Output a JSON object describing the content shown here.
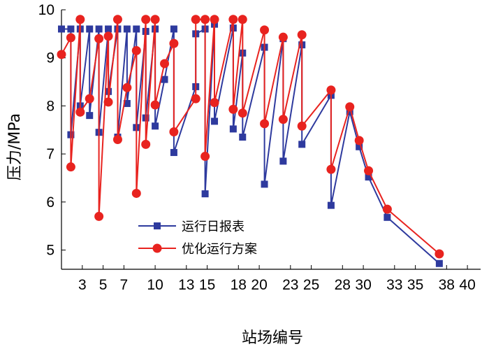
{
  "chart_data": {
    "type": "line",
    "title": "",
    "xlabel": "站场编号",
    "ylabel": "压力/MPa",
    "ylim": [
      4.6,
      10
    ],
    "yticks": [
      5,
      6,
      7,
      8,
      9,
      10
    ],
    "xticks": [
      3,
      5,
      7,
      10,
      13,
      15,
      18,
      20,
      23,
      25,
      28,
      30,
      33,
      35,
      38,
      40
    ],
    "xtick_labels": [
      "3",
      "5",
      "7",
      "10",
      "13",
      "15",
      "18",
      "20",
      "23",
      "25",
      "28",
      "30",
      "33",
      "35",
      "38",
      "40"
    ],
    "xlim": [
      1,
      41
    ],
    "grid": false,
    "legend_position": "lower-left",
    "series": [
      {
        "name": "运行日报表",
        "color": "#2e3a9e",
        "marker": "square",
        "points": [
          [
            1.0,
            9.6
          ],
          [
            1.9,
            9.6
          ],
          [
            1.9,
            7.4
          ],
          [
            2.8,
            9.6
          ],
          [
            2.8,
            8.0
          ],
          [
            3.7,
            9.6
          ],
          [
            3.7,
            7.8
          ],
          [
            4.6,
            9.6
          ],
          [
            4.6,
            7.45
          ],
          [
            5.5,
            9.6
          ],
          [
            5.5,
            8.3
          ],
          [
            6.4,
            9.6
          ],
          [
            6.4,
            7.35
          ],
          [
            7.3,
            9.6
          ],
          [
            7.3,
            8.05
          ],
          [
            8.2,
            9.6
          ],
          [
            8.2,
            7.55
          ],
          [
            9.1,
            9.55
          ],
          [
            9.1,
            7.75
          ],
          [
            10.0,
            9.6
          ],
          [
            10.0,
            7.58
          ],
          [
            10.9,
            8.55
          ],
          [
            11.8,
            9.6
          ],
          [
            11.8,
            7.03
          ],
          [
            13.9,
            8.4
          ],
          [
            13.9,
            9.5
          ],
          [
            14.8,
            9.6
          ],
          [
            14.8,
            6.17
          ],
          [
            15.7,
            9.7
          ],
          [
            15.7,
            7.68
          ],
          [
            17.5,
            9.62
          ],
          [
            17.5,
            7.52
          ],
          [
            18.4,
            9.1
          ],
          [
            18.4,
            7.35
          ],
          [
            20.5,
            9.22
          ],
          [
            20.5,
            6.37
          ],
          [
            22.3,
            9.4
          ],
          [
            22.3,
            6.85
          ],
          [
            24.1,
            9.27
          ],
          [
            24.1,
            7.2
          ],
          [
            26.9,
            8.22
          ],
          [
            26.9,
            5.93
          ],
          [
            28.7,
            7.88
          ],
          [
            29.6,
            7.15
          ],
          [
            30.5,
            6.52
          ],
          [
            32.3,
            5.68
          ],
          [
            37.3,
            4.72
          ]
        ]
      },
      {
        "name": "优化运行方案",
        "color": "#e8231f",
        "marker": "circle",
        "points": [
          [
            1.0,
            9.07
          ],
          [
            1.9,
            9.42
          ],
          [
            1.9,
            6.73
          ],
          [
            2.8,
            9.8
          ],
          [
            2.8,
            7.87
          ],
          [
            3.7,
            8.15
          ],
          [
            4.6,
            9.4
          ],
          [
            4.6,
            5.7
          ],
          [
            5.5,
            9.45
          ],
          [
            5.5,
            8.08
          ],
          [
            6.4,
            9.8
          ],
          [
            6.4,
            7.3
          ],
          [
            7.3,
            8.38
          ],
          [
            8.2,
            9.15
          ],
          [
            8.2,
            6.18
          ],
          [
            9.1,
            9.8
          ],
          [
            9.1,
            7.2
          ],
          [
            10.0,
            9.8
          ],
          [
            10.0,
            8.02
          ],
          [
            10.9,
            8.88
          ],
          [
            11.8,
            9.3
          ],
          [
            11.8,
            7.46
          ],
          [
            13.9,
            8.15
          ],
          [
            13.9,
            9.8
          ],
          [
            14.8,
            9.8
          ],
          [
            14.8,
            6.95
          ],
          [
            15.7,
            9.8
          ],
          [
            15.7,
            8.07
          ],
          [
            17.5,
            9.8
          ],
          [
            17.5,
            7.93
          ],
          [
            18.4,
            9.8
          ],
          [
            18.4,
            7.85
          ],
          [
            20.5,
            9.58
          ],
          [
            20.5,
            7.63
          ],
          [
            22.3,
            9.43
          ],
          [
            22.3,
            7.72
          ],
          [
            24.1,
            9.48
          ],
          [
            24.1,
            7.58
          ],
          [
            26.9,
            8.33
          ],
          [
            26.9,
            6.68
          ],
          [
            28.7,
            7.98
          ],
          [
            29.6,
            7.28
          ],
          [
            30.5,
            6.65
          ],
          [
            32.3,
            5.85
          ],
          [
            37.3,
            4.92
          ]
        ]
      }
    ]
  }
}
